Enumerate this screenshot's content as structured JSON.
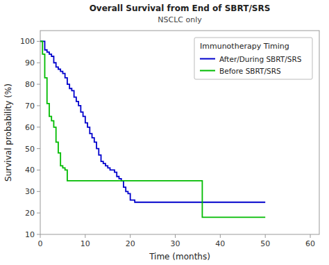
{
  "chart_data": {
    "type": "step",
    "title": "Overall Survival from End of SBRT/SRS",
    "subtitle": "NSCLC only",
    "x_label": "Time (months)",
    "y_label": "Survival probability (%)",
    "xlim": [
      0,
      62
    ],
    "ylim": [
      10,
      105
    ],
    "xticks": [
      0,
      10,
      20,
      30,
      40,
      50,
      60
    ],
    "yticks": [
      10,
      20,
      30,
      40,
      50,
      60,
      70,
      80,
      90,
      100
    ],
    "legend": "upper right",
    "legend_title": "Immunotherapy Timing",
    "series": [
      {
        "name": "After/During SBRT/SRS",
        "color": "#0000cc",
        "x": [
          0,
          0.3,
          1,
          1.5,
          2,
          2.5,
          3,
          3.5,
          4,
          4.5,
          5,
          5.5,
          6,
          6.5,
          7,
          7.5,
          8,
          8.5,
          9,
          9.5,
          10,
          10.5,
          11,
          11.5,
          12,
          12.5,
          13,
          13.5,
          14,
          14.5,
          15,
          15.5,
          16,
          16.5,
          17,
          17.5,
          18,
          18.5,
          19,
          19.5,
          20,
          21,
          22,
          50
        ],
        "values": [
          100,
          100,
          96,
          95,
          94,
          93,
          90,
          88,
          87,
          86,
          85,
          83,
          80,
          78,
          77,
          74,
          72,
          70,
          67,
          65,
          62,
          60,
          57,
          55,
          53,
          50,
          47,
          44,
          43,
          42,
          41,
          40,
          40,
          39,
          37,
          36,
          35,
          32,
          30,
          29,
          26,
          25,
          25,
          25
        ]
      },
      {
        "name": "Before SBRT/SRS",
        "color": "#00bb00",
        "x": [
          0,
          0.5,
          1,
          1.5,
          2,
          2.5,
          3,
          3.5,
          4,
          4.5,
          5,
          5.5,
          6,
          7,
          8,
          9,
          10,
          35,
          36,
          50
        ],
        "values": [
          100,
          94,
          83,
          71,
          65,
          63,
          60,
          53,
          48,
          42,
          41,
          40,
          35,
          35,
          35,
          35,
          35,
          35,
          18,
          18
        ]
      }
    ]
  }
}
